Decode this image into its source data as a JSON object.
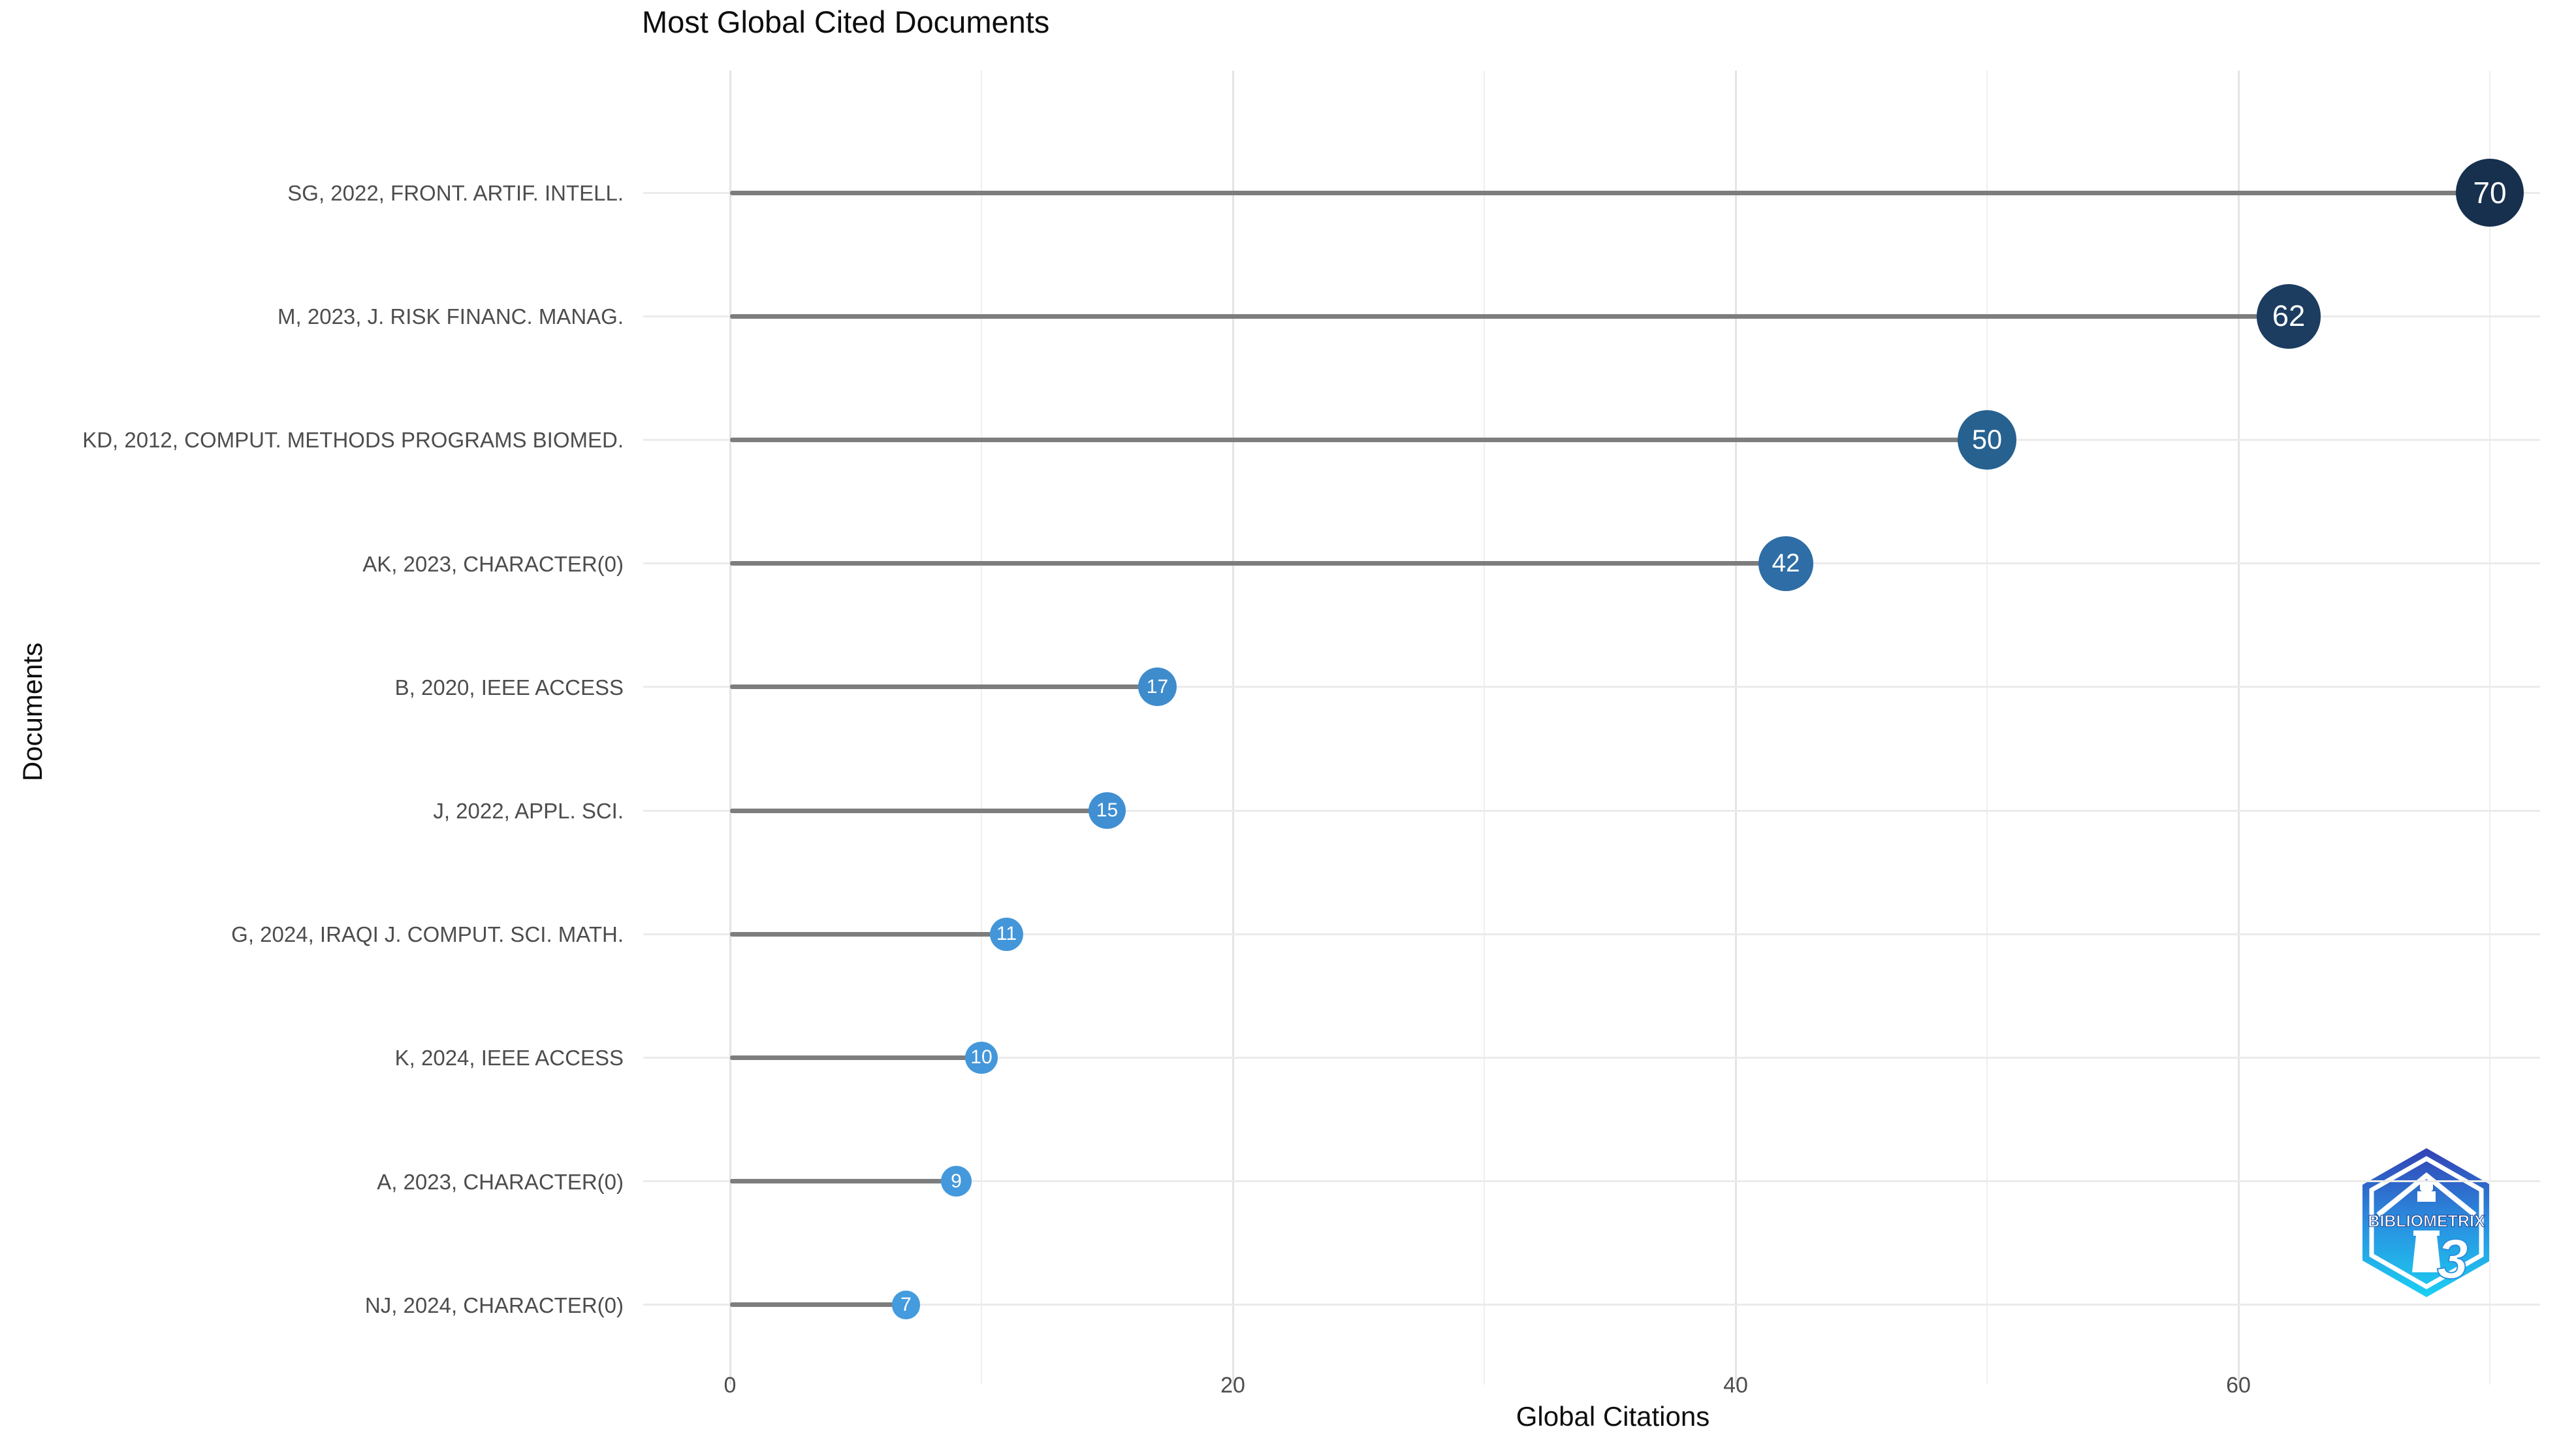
{
  "chart_data": {
    "type": "lollipop",
    "title": "Most Global Cited Documents",
    "xlabel": "Global Citations",
    "ylabel": "Documents",
    "x_ticks": [
      0,
      20,
      40,
      60
    ],
    "x_minor_ticks": [
      10,
      30,
      50,
      70
    ],
    "xlim": [
      0,
      71.5
    ],
    "grid": true,
    "legend": "none",
    "points": [
      {
        "label": "SG, 2022, FRONT. ARTIF. INTELL.",
        "value": 70,
        "color": "#16304e"
      },
      {
        "label": "M, 2023, J. RISK FINANC. MANAG.",
        "value": 62,
        "color": "#1c3c60"
      },
      {
        "label": "KD, 2012, COMPUT. METHODS PROGRAMS BIOMED.",
        "value": 50,
        "color": "#27618f"
      },
      {
        "label": "AK, 2023, CHARACTER(0)",
        "value": 42,
        "color": "#2e6da5"
      },
      {
        "label": "B, 2020, IEEE ACCESS",
        "value": 17,
        "color": "#3e8ccc"
      },
      {
        "label": "J, 2022, APPL. SCI.",
        "value": 15,
        "color": "#408fd2"
      },
      {
        "label": "G, 2024, IRAQI J. COMPUT. SCI. MATH.",
        "value": 11,
        "color": "#4396d9"
      },
      {
        "label": "K, 2024, IEEE ACCESS",
        "value": 10,
        "color": "#4397da"
      },
      {
        "label": "A, 2023, CHARACTER(0)",
        "value": 9,
        "color": "#4399dc"
      },
      {
        "label": "NJ, 2024, CHARACTER(0)",
        "value": 7,
        "color": "#449bde"
      }
    ]
  },
  "branding": {
    "logo_text": "BIBLIOMETRIX",
    "logo_colors": {
      "top": "#3341b4",
      "mid": "#2a8fe0",
      "bottom": "#1bd0f2"
    }
  },
  "colors": {
    "background": "#ffffff",
    "grid_major": "#e4e4e4",
    "grid_minor": "#efefef",
    "row_line": "#ebebeb",
    "stem": "#7d7d7d",
    "axis_text": "#4d4d4d",
    "title_text": "#0d0d0d",
    "dot_text": "#ffffff"
  }
}
